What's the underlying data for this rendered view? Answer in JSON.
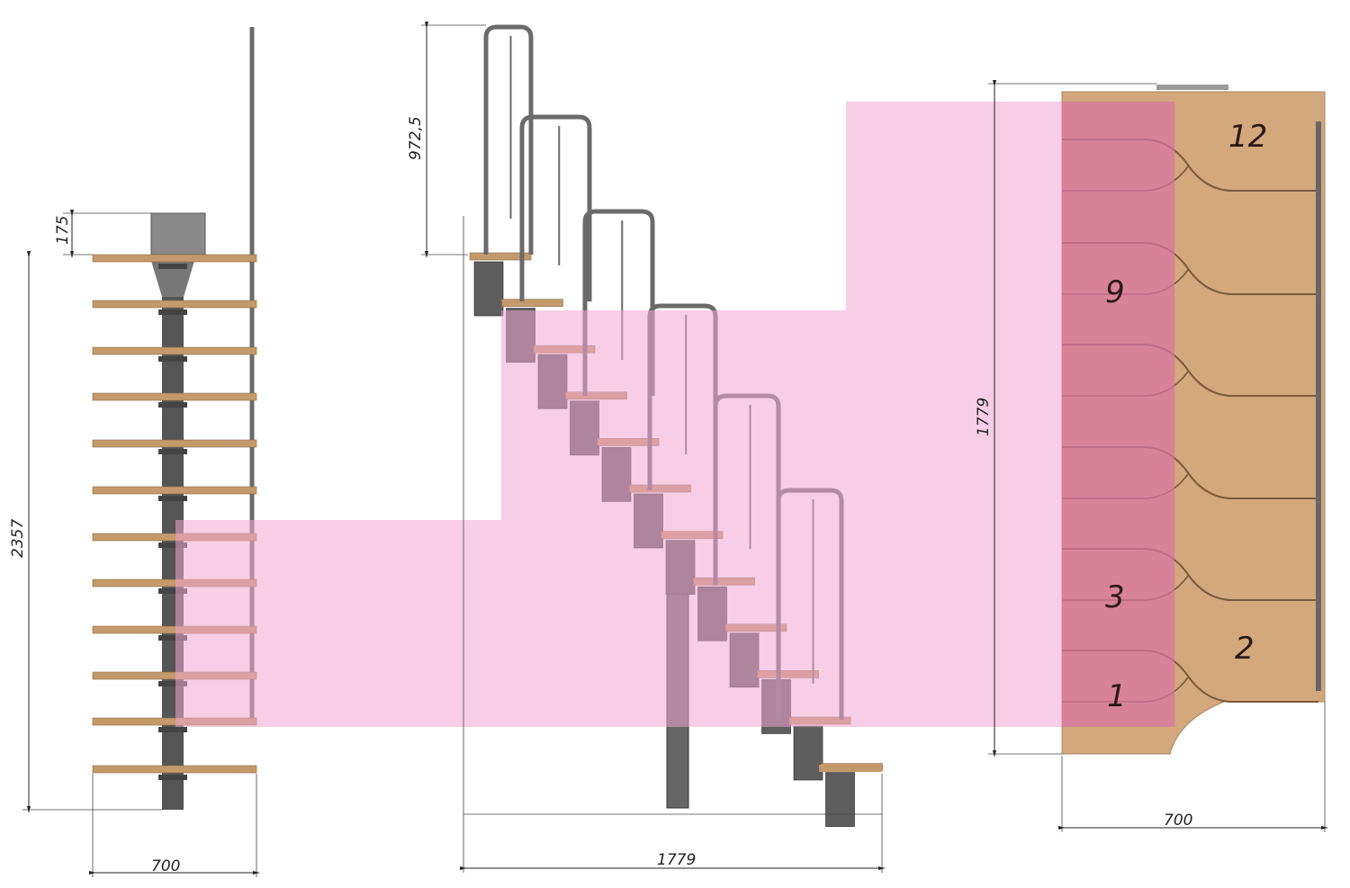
{
  "dimensions": {
    "left_platform_height": "175",
    "left_total_height": "2357",
    "left_width": "700",
    "mid_rail_height": "972,5",
    "mid_length": "1779",
    "plan_length": "1779",
    "plan_width": "700"
  },
  "step_numbers": [
    "12",
    "9",
    "3",
    "2",
    "1"
  ],
  "colors": {
    "tread": "#c49a6c",
    "metal": "#6b6b6b",
    "highlight": "#f0a6d2",
    "plan_wood": "#d2a87c"
  }
}
